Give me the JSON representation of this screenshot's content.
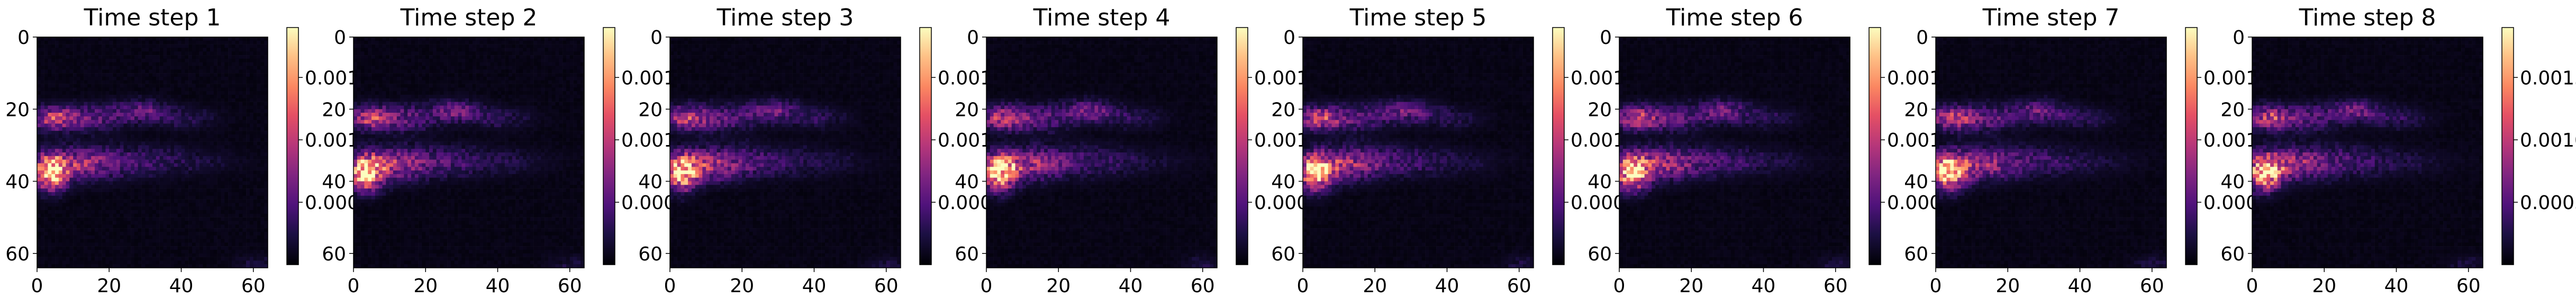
{
  "chart_data": {
    "type": "heatmap",
    "colormap": "magma",
    "grid": false,
    "panels": [
      {
        "title": "Time step 1",
        "cbar_ticks": [
          "0.001",
          "0.001",
          "0.000"
        ]
      },
      {
        "title": "Time step 2",
        "cbar_ticks": [
          "0.001",
          "0.001",
          "0.000"
        ]
      },
      {
        "title": "Time step 3",
        "cbar_ticks": [
          "0.001",
          "0.001",
          "0.000"
        ]
      },
      {
        "title": "Time step 4",
        "cbar_ticks": [
          "0.001",
          "0.001",
          "0.000"
        ]
      },
      {
        "title": "Time step 5",
        "cbar_ticks": [
          "0.001",
          "0.001",
          "0.000"
        ]
      },
      {
        "title": "Time step 6",
        "cbar_ticks": [
          "0.001",
          "0.001",
          "0.000"
        ]
      },
      {
        "title": "Time step 7",
        "cbar_ticks": [
          "0.001",
          "0.001",
          "0.000"
        ]
      },
      {
        "title": "Time step 8",
        "cbar_ticks": [
          "0.0015",
          "0.0010",
          "0.0005"
        ]
      }
    ],
    "x_ticks": [
      "0",
      "20",
      "40",
      "60"
    ],
    "y_ticks": [
      "0",
      "20",
      "40",
      "60"
    ],
    "xlim": [
      0,
      64
    ],
    "ylim": [
      64,
      0
    ],
    "cbar_ticks_values": [
      0.0015,
      0.001,
      0.0005
    ],
    "cbar_range": [
      0.0,
      0.0019
    ]
  }
}
